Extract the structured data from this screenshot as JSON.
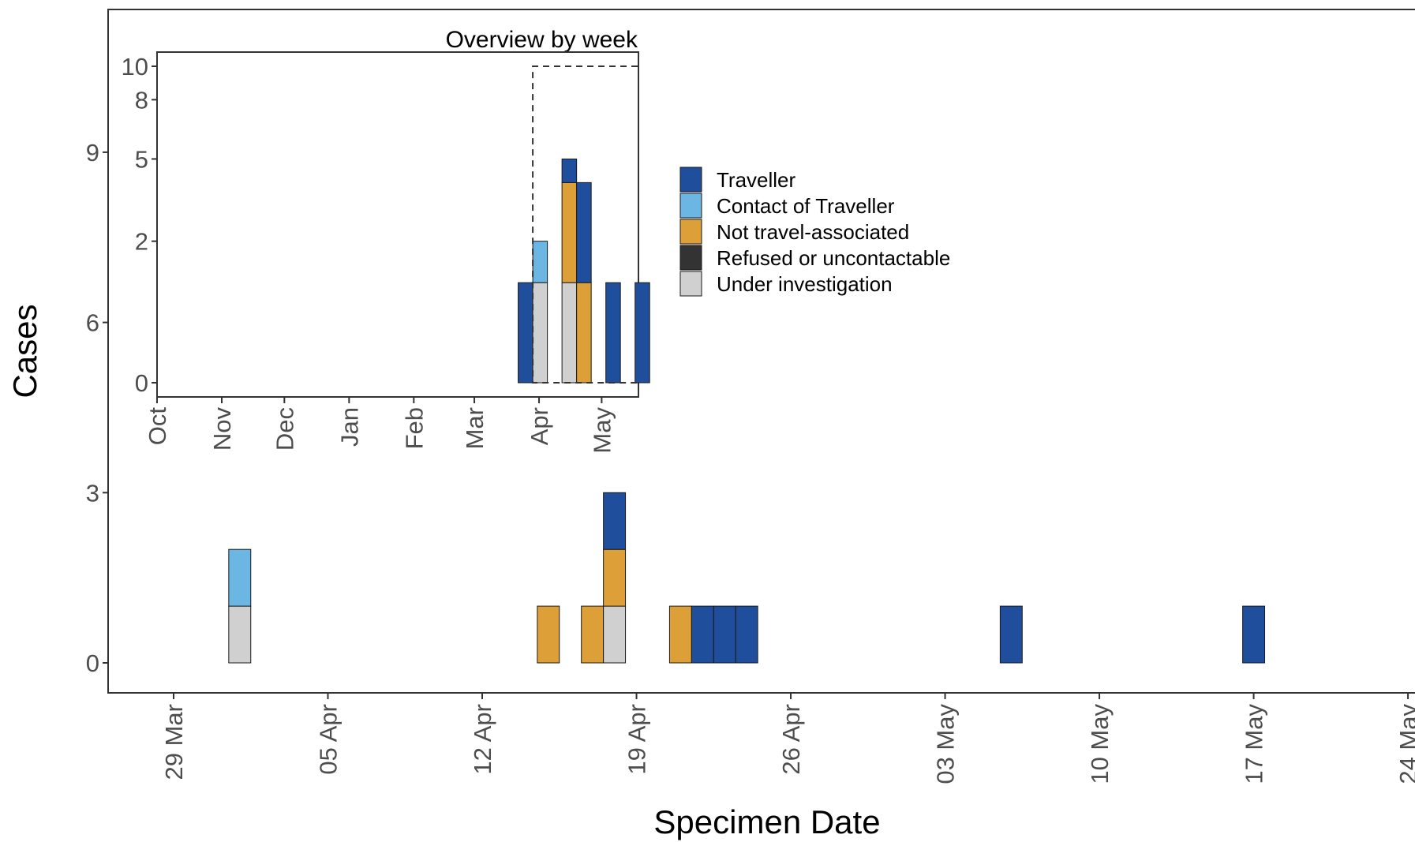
{
  "colors": {
    "Traveller": "#1f4e9c",
    "Contact of Traveller": "#6cb6e4",
    "Not travel-associated": "#dda038",
    "Refused or uncontactable": "#333333",
    "Under investigation": "#d0d0d0"
  },
  "chart_data": [
    {
      "type": "bar",
      "stacked": true,
      "xlabel": "Specimen Date",
      "ylabel": "Cases",
      "x_ticks": [
        "29 Mar",
        "05 Apr",
        "12 Apr",
        "19 Apr",
        "26 Apr",
        "03 May",
        "10 May",
        "17 May",
        "24 May"
      ],
      "y_ticks": [
        "0",
        "3",
        "6",
        "9"
      ],
      "ylim": [
        0,
        9
      ],
      "legend": {
        "position": "right",
        "entries": [
          "Traveller",
          "Contact of Traveller",
          "Not travel-associated",
          "Refused or uncontactable",
          "Under investigation"
        ]
      },
      "grid": false,
      "bars": [
        {
          "date": "2020-04-01",
          "stack": [
            {
              "category": "Under investigation",
              "value": 1
            },
            {
              "category": "Contact of Traveller",
              "value": 1
            }
          ]
        },
        {
          "date": "2020-04-15",
          "stack": [
            {
              "category": "Not travel-associated",
              "value": 1
            }
          ]
        },
        {
          "date": "2020-04-17",
          "stack": [
            {
              "category": "Not travel-associated",
              "value": 1
            }
          ]
        },
        {
          "date": "2020-04-18",
          "stack": [
            {
              "category": "Under investigation",
              "value": 1
            },
            {
              "category": "Not travel-associated",
              "value": 1
            },
            {
              "category": "Traveller",
              "value": 1
            }
          ]
        },
        {
          "date": "2020-04-21",
          "stack": [
            {
              "category": "Not travel-associated",
              "value": 1
            }
          ]
        },
        {
          "date": "2020-04-22",
          "stack": [
            {
              "category": "Traveller",
              "value": 1
            }
          ]
        },
        {
          "date": "2020-04-23",
          "stack": [
            {
              "category": "Traveller",
              "value": 1
            }
          ]
        },
        {
          "date": "2020-04-24",
          "stack": [
            {
              "category": "Traveller",
              "value": 1
            }
          ]
        },
        {
          "date": "2020-05-06",
          "stack": [
            {
              "category": "Traveller",
              "value": 1
            }
          ]
        },
        {
          "date": "2020-05-17",
          "stack": [
            {
              "category": "Traveller",
              "value": 1
            }
          ]
        }
      ]
    },
    {
      "type": "bar",
      "stacked": true,
      "title": "Overview by week",
      "x_ticks": [
        "Oct",
        "Nov",
        "Dec",
        "Jan",
        "Feb",
        "Mar",
        "Apr",
        "May"
      ],
      "y_ticks": [
        "0",
        "2",
        "5",
        "8",
        "10"
      ],
      "y_scale": "sqrt",
      "ylim": [
        0,
        10
      ],
      "grid": false,
      "highlight_box": {
        "x_start": "2020-03-29",
        "x_end": "2020-05-24",
        "y_top": 10
      },
      "bars": [
        {
          "week_start": "2020-03-22",
          "stack": [
            {
              "category": "Traveller",
              "value": 1
            }
          ]
        },
        {
          "week_start": "2020-03-29",
          "stack": [
            {
              "category": "Under investigation",
              "value": 1
            },
            {
              "category": "Contact of Traveller",
              "value": 1
            }
          ]
        },
        {
          "week_start": "2020-04-12",
          "stack": [
            {
              "category": "Under investigation",
              "value": 1
            },
            {
              "category": "Not travel-associated",
              "value": 3
            },
            {
              "category": "Traveller",
              "value": 1
            }
          ]
        },
        {
          "week_start": "2020-04-19",
          "stack": [
            {
              "category": "Not travel-associated",
              "value": 1
            },
            {
              "category": "Traveller",
              "value": 3
            }
          ]
        },
        {
          "week_start": "2020-05-03",
          "stack": [
            {
              "category": "Traveller",
              "value": 1
            }
          ]
        },
        {
          "week_start": "2020-05-17",
          "stack": [
            {
              "category": "Traveller",
              "value": 1
            }
          ]
        }
      ]
    }
  ]
}
